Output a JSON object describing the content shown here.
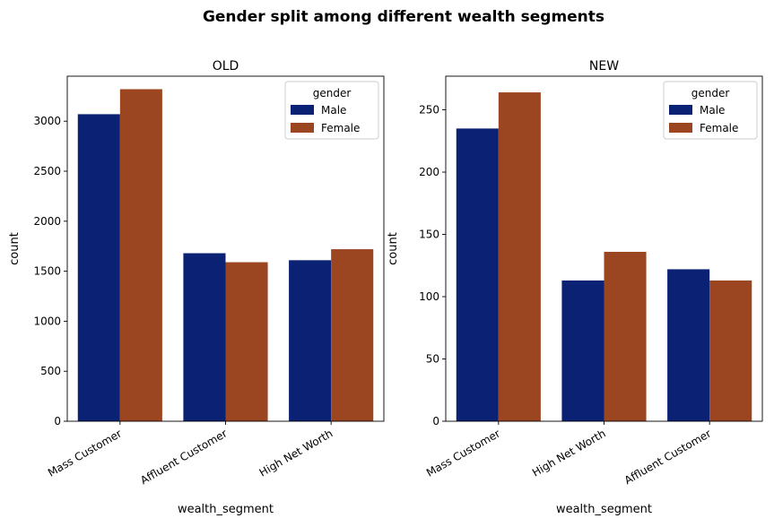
{
  "figure": {
    "suptitle": "Gender split among different wealth segments"
  },
  "colors": {
    "Male": "#0b2274",
    "Female": "#9b4620",
    "axis": "#000000",
    "background": "#ffffff"
  },
  "chart_data": [
    {
      "type": "bar",
      "title": "OLD",
      "xlabel": "wealth_segment",
      "ylabel": "count",
      "categories": [
        "Mass Customer",
        "Affluent Customer",
        "High Net Worth"
      ],
      "series": [
        {
          "name": "Male",
          "values": [
            3070,
            1680,
            1610
          ]
        },
        {
          "name": "Female",
          "values": [
            3320,
            1590,
            1720
          ]
        }
      ],
      "ylim": [
        0,
        3450
      ],
      "yticks": [
        0,
        500,
        1000,
        1500,
        2000,
        2500,
        3000
      ],
      "legend": {
        "title": "gender",
        "position": "top-right"
      },
      "grid": false
    },
    {
      "type": "bar",
      "title": "NEW",
      "xlabel": "wealth_segment",
      "ylabel": "count",
      "categories": [
        "Mass Customer",
        "High Net Worth",
        "Affluent Customer"
      ],
      "series": [
        {
          "name": "Male",
          "values": [
            235,
            113,
            122
          ]
        },
        {
          "name": "Female",
          "values": [
            264,
            136,
            113
          ]
        }
      ],
      "ylim": [
        0,
        277
      ],
      "yticks": [
        0,
        50,
        100,
        150,
        200,
        250
      ],
      "legend": {
        "title": "gender",
        "position": "top-right"
      },
      "grid": false
    }
  ]
}
